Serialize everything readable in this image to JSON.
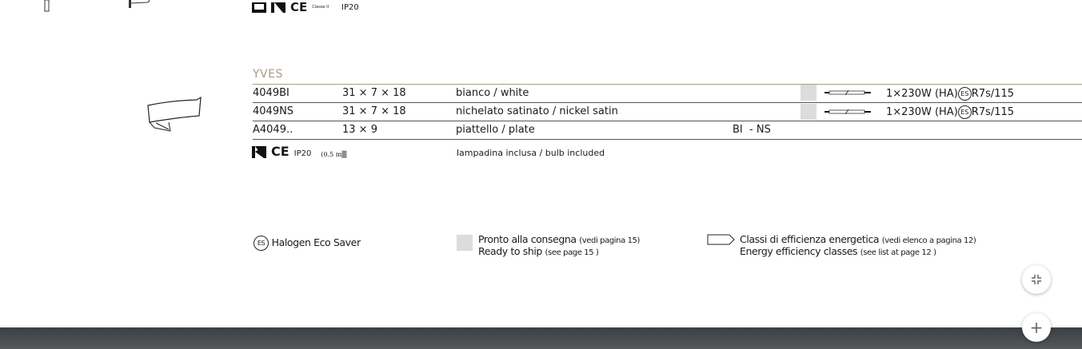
{
  "top_icons": {
    "ip_rating": "IP20",
    "class_label": "Classe II"
  },
  "series_title": "YVES",
  "rows": [
    {
      "code": "4049BI",
      "dims": "31 × 7 × 18",
      "finish": "bianco / white",
      "variants": "",
      "ready_to_ship": true,
      "bulb": "1×230W (HA)",
      "eco": "ES",
      "socket": "R7s/115"
    },
    {
      "code": "4049NS",
      "dims": "31 × 7 × 18",
      "finish": "nichelato satinato / nickel satin",
      "variants": "",
      "ready_to_ship": true,
      "bulb": "1×230W (HA)",
      "eco": "ES",
      "socket": "R7s/115"
    },
    {
      "code": "A4049..",
      "dims": "13 × 9",
      "finish": "piattello / plate",
      "variants": "BI  - NS"
    }
  ],
  "footer_icons": {
    "ip_rating": "IP20",
    "distance": "0.5 m",
    "bulb_note": "lampadina inclusa / bulb included"
  },
  "legend": {
    "eco_symbol": "ES",
    "eco_label": "Halogen Eco Saver",
    "ready_it": "Pronto alla consegna",
    "ready_it_ref": "(vedi pagina 15)",
    "ready_en": "Ready to ship",
    "ready_en_ref": "(see page 15 )",
    "energy_it": "Classi di efficienza energetica",
    "energy_it_ref": "(vedi elenco a pagina 12)",
    "energy_en": "Energy efficiency classes",
    "energy_en_ref": "(see list at page 12 )"
  },
  "controls": {
    "collapse_icon": "compress-icon",
    "zoom_icon": "plus-icon",
    "plus_label": "+"
  },
  "colors": {
    "series_title": "#a89c84",
    "ready_square": "#dcdcdc",
    "bottom_bar": "#4a4d50"
  }
}
